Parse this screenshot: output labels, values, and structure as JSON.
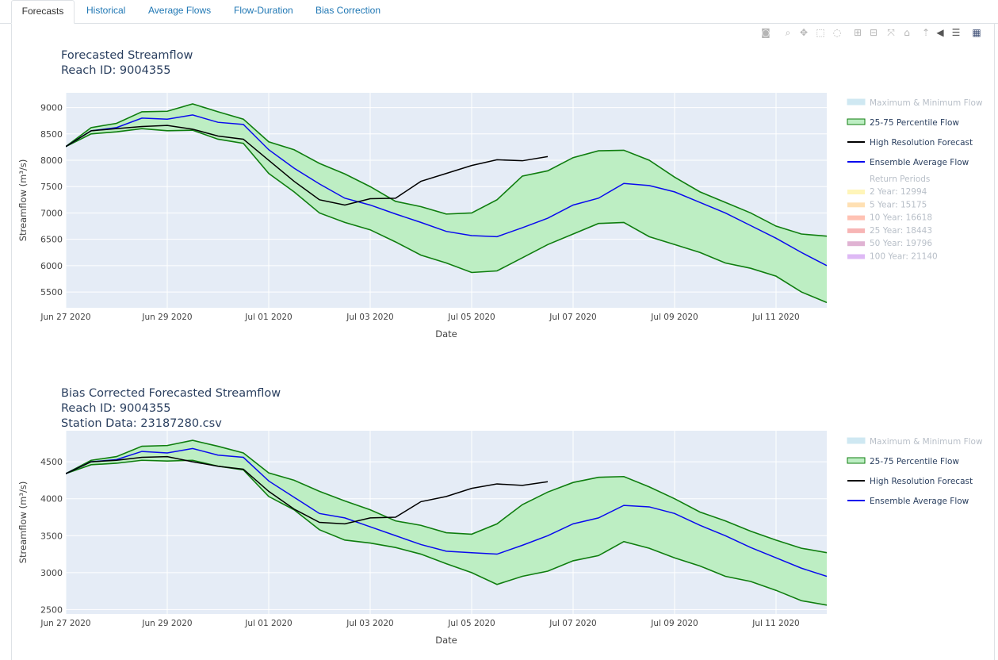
{
  "tabs": [
    {
      "label": "Forecasts",
      "active": true
    },
    {
      "label": "Historical",
      "active": false
    },
    {
      "label": "Average Flows",
      "active": false
    },
    {
      "label": "Flow-Duration",
      "active": false
    },
    {
      "label": "Bias Correction",
      "active": false
    }
  ],
  "modebar": [
    {
      "icon": "camera-icon",
      "glyph": "◙"
    },
    {
      "icon": "zoom-icon",
      "glyph": "⌕"
    },
    {
      "icon": "pan-icon",
      "glyph": "✥"
    },
    {
      "icon": "box-select-icon",
      "glyph": "⬚"
    },
    {
      "icon": "lasso-select-icon",
      "glyph": "◌"
    },
    {
      "icon": "zoom-in-icon",
      "glyph": "⊞"
    },
    {
      "icon": "zoom-out-icon",
      "glyph": "⊟"
    },
    {
      "icon": "autoscale-icon",
      "glyph": "⤧"
    },
    {
      "icon": "reset-axes-icon",
      "glyph": "⌂"
    },
    {
      "icon": "spike-lines-icon",
      "glyph": "⇡"
    },
    {
      "icon": "hover-closest-icon",
      "glyph": "◀"
    },
    {
      "icon": "hover-compare-icon",
      "glyph": "☰"
    },
    {
      "icon": "plotly-logo-icon",
      "glyph": "▦"
    }
  ],
  "colors": {
    "plot_bg": "#e5ecf6",
    "band_fill": "#bdeec3",
    "band_line": "#0f7d0f",
    "hires": "#000000",
    "ensemble": "#0a0aee",
    "maxmin": "#cfe8f2",
    "rp_2": "#fff2a8",
    "rp_5": "#ffd8a0",
    "rp_10": "#ffb3a0",
    "rp_25": "#f5a3a3",
    "rp_50": "#d8a0c8",
    "rp_100": "#d6a8f2"
  },
  "chart_data": [
    {
      "type": "line",
      "title": "Forecasted Streamflow",
      "subtitle": "Reach ID: 9004355",
      "xlabel": "Date",
      "ylabel": "Streamflow (m³/s)",
      "x_ticks": [
        "Jun 27 2020",
        "Jun 29 2020",
        "Jul 01 2020",
        "Jul 03 2020",
        "Jul 05 2020",
        "Jul 07 2020",
        "Jul 09 2020",
        "Jul 11 2020"
      ],
      "x_range": [
        0,
        15
      ],
      "y_ticks": [
        5500,
        6000,
        6500,
        7000,
        7500,
        8000,
        8500,
        9000
      ],
      "ylim": [
        5200,
        9280
      ],
      "x_days": [
        0,
        0.5,
        1,
        1.5,
        2,
        2.5,
        3,
        3.5,
        4,
        4.5,
        5,
        5.5,
        6,
        6.5,
        7,
        7.5,
        8,
        8.5,
        9,
        9.5,
        10,
        10.5,
        11,
        11.5,
        12,
        12.5,
        13,
        13.5,
        14,
        14.5,
        15
      ],
      "series": [
        {
          "name": "Maximum & Minimum Flow",
          "values": []
        },
        {
          "name": "25-75 Percentile Flow",
          "upper": [
            8260,
            8620,
            8700,
            8920,
            8930,
            9070,
            8920,
            8780,
            8350,
            8200,
            7940,
            7740,
            7500,
            7220,
            7120,
            6980,
            7000,
            7250,
            7700,
            7800,
            8050,
            8180,
            8190,
            8000,
            7680,
            7400,
            7200,
            7000,
            6750,
            6600,
            6560
          ],
          "lower": [
            8260,
            8500,
            8540,
            8600,
            8560,
            8570,
            8400,
            8320,
            7750,
            7400,
            7000,
            6820,
            6680,
            6450,
            6200,
            6050,
            5870,
            5900,
            6150,
            6400,
            6600,
            6800,
            6820,
            6550,
            6400,
            6250,
            6050,
            5950,
            5800,
            5500,
            5300
          ]
        },
        {
          "name": "High Resolution Forecast",
          "values": [
            8260,
            8560,
            8600,
            8640,
            8660,
            8590,
            8460,
            8400,
            8000,
            7600,
            7250,
            7150,
            7270,
            7280,
            7600,
            7750,
            7900,
            8010,
            7990,
            8070
          ]
        },
        {
          "name": "Ensemble Average Flow",
          "values": [
            8260,
            8560,
            8620,
            8800,
            8780,
            8860,
            8720,
            8680,
            8200,
            7850,
            7550,
            7280,
            7150,
            6980,
            6820,
            6650,
            6570,
            6550,
            6720,
            6900,
            7150,
            7280,
            7560,
            7520,
            7400,
            7200,
            7000,
            6760,
            6520,
            6250,
            6000
          ]
        }
      ],
      "legend_placement": "right",
      "legend": [
        "Maximum & Minimum Flow",
        "25-75 Percentile Flow",
        "High Resolution Forecast",
        "Ensemble Average Flow"
      ],
      "return_periods_title": "Return Periods",
      "return_periods": [
        {
          "label": "2 Year: 12994",
          "value": 12994,
          "color_key": "rp_2"
        },
        {
          "label": "5 Year: 15175",
          "value": 15175,
          "color_key": "rp_5"
        },
        {
          "label": "10 Year: 16618",
          "value": 16618,
          "color_key": "rp_10"
        },
        {
          "label": "25 Year: 18443",
          "value": 18443,
          "color_key": "rp_25"
        },
        {
          "label": "50 Year: 19796",
          "value": 19796,
          "color_key": "rp_50"
        },
        {
          "label": "100 Year: 21140",
          "value": 21140,
          "color_key": "rp_100"
        }
      ]
    },
    {
      "type": "line",
      "title": "Bias Corrected Forecasted Streamflow",
      "subtitle": "Reach ID: 9004355",
      "subtitle2": "Station Data: 23187280.csv",
      "xlabel": "Date",
      "ylabel": "Streamflow (m³/s)",
      "x_ticks": [
        "Jun 27 2020",
        "Jun 29 2020",
        "Jul 01 2020",
        "Jul 03 2020",
        "Jul 05 2020",
        "Jul 07 2020",
        "Jul 09 2020",
        "Jul 11 2020"
      ],
      "x_range": [
        0,
        15
      ],
      "y_ticks": [
        2500,
        3000,
        3500,
        4000,
        4500
      ],
      "ylim": [
        2440,
        4920
      ],
      "x_days": [
        0,
        0.5,
        1,
        1.5,
        2,
        2.5,
        3,
        3.5,
        4,
        4.5,
        5,
        5.5,
        6,
        6.5,
        7,
        7.5,
        8,
        8.5,
        9,
        9.5,
        10,
        10.5,
        11,
        11.5,
        12,
        12.5,
        13,
        13.5,
        14,
        14.5,
        15
      ],
      "series": [
        {
          "name": "Maximum & Minimum Flow",
          "values": []
        },
        {
          "name": "25-75 Percentile Flow",
          "upper": [
            4340,
            4520,
            4570,
            4710,
            4720,
            4790,
            4710,
            4620,
            4350,
            4250,
            4100,
            3970,
            3850,
            3700,
            3640,
            3540,
            3520,
            3660,
            3920,
            4090,
            4220,
            4290,
            4300,
            4160,
            4000,
            3820,
            3700,
            3560,
            3440,
            3330,
            3270
          ]
        },
        {
          "name": "High Resolution Forecast",
          "values": [
            4340,
            4500,
            4520,
            4560,
            4570,
            4500,
            4440,
            4400,
            4100,
            3860,
            3680,
            3660,
            3740,
            3750,
            3960,
            4030,
            4140,
            4200,
            4180,
            4230
          ]
        },
        {
          "name": "Ensemble Average Flow",
          "values": [
            4340,
            4500,
            4530,
            4640,
            4620,
            4680,
            4590,
            4560,
            4240,
            4020,
            3800,
            3740,
            3620,
            3500,
            3380,
            3290,
            3270,
            3250,
            3370,
            3500,
            3660,
            3740,
            3910,
            3890,
            3800,
            3640,
            3500,
            3340,
            3200,
            3060,
            2950
          ]
        }
      ],
      "legend_placement": "right",
      "legend": [
        "Maximum & Minimum Flow",
        "25-75 Percentile Flow",
        "High Resolution Forecast",
        "Ensemble Average Flow"
      ]
    }
  ]
}
